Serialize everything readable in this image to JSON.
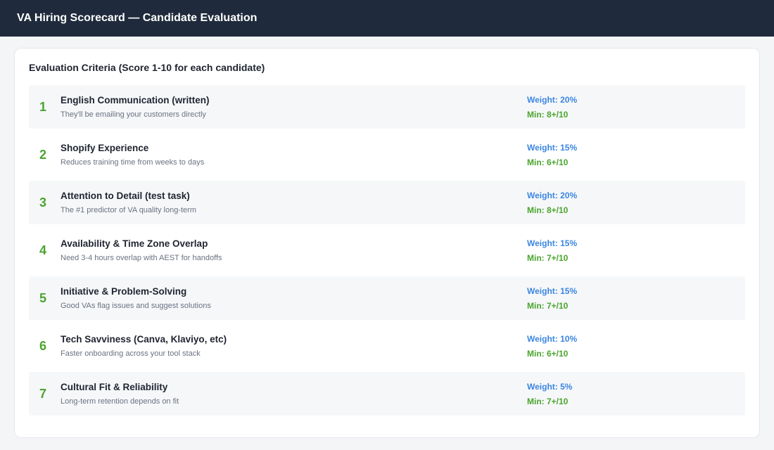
{
  "header": {
    "title": "VA Hiring Scorecard — Candidate Evaluation"
  },
  "card": {
    "title": "Evaluation Criteria (Score 1-10 for each candidate)"
  },
  "criteria": [
    {
      "num": "1",
      "name": "English Communication (written)",
      "desc": "They'll be emailing your customers directly",
      "weight": "Weight: 20%",
      "min": "Min: 8+/10"
    },
    {
      "num": "2",
      "name": "Shopify Experience",
      "desc": "Reduces training time from weeks to days",
      "weight": "Weight: 15%",
      "min": "Min: 6+/10"
    },
    {
      "num": "3",
      "name": "Attention to Detail (test task)",
      "desc": "The #1 predictor of VA quality long-term",
      "weight": "Weight: 20%",
      "min": "Min: 8+/10"
    },
    {
      "num": "4",
      "name": "Availability & Time Zone Overlap",
      "desc": "Need 3-4 hours overlap with AEST for handoffs",
      "weight": "Weight: 15%",
      "min": "Min: 7+/10"
    },
    {
      "num": "5",
      "name": "Initiative & Problem-Solving",
      "desc": "Good VAs flag issues and suggest solutions",
      "weight": "Weight: 15%",
      "min": "Min: 7+/10"
    },
    {
      "num": "6",
      "name": "Tech Savviness (Canva, Klaviyo, etc)",
      "desc": "Faster onboarding across your tool stack",
      "weight": "Weight: 10%",
      "min": "Min: 6+/10"
    },
    {
      "num": "7",
      "name": "Cultural Fit & Reliability",
      "desc": "Long-term retention depends on fit",
      "weight": "Weight: 5%",
      "min": "Min: 7+/10"
    }
  ],
  "colors": {
    "header_bg": "#1f2b3c",
    "number_green": "#4aa52e",
    "weight_blue": "#3b86e0",
    "row_shade": "#f6f7f9"
  }
}
